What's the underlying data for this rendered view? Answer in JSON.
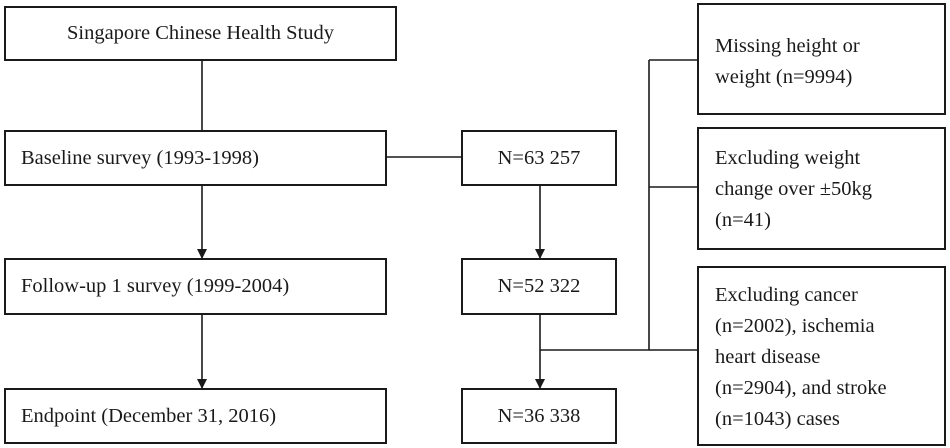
{
  "boxes": {
    "study": "Singapore Chinese Health Study",
    "baseline": "Baseline survey (1993-1998)",
    "followup": "Follow-up 1 survey (1999-2004)",
    "endpoint": "Endpoint (December 31, 2016)",
    "n_baseline": "N=63 257",
    "n_followup": "N=52 322",
    "n_endpoint": "N=36 338",
    "exclude_missing": "Missing height or\nweight (n=9994)",
    "exclude_weight": "Excluding weight\nchange over ±50kg\n(n=41)",
    "exclude_disease": "Excluding cancer\n(n=2002), ischemia\nheart disease\n(n=2904), and stroke\n(n=1043) cases"
  }
}
